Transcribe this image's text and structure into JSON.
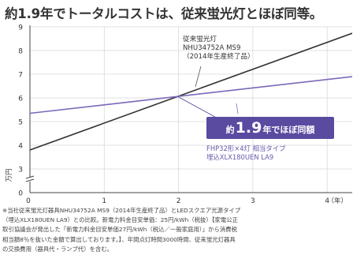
{
  "headline": "約1.9年でトータルコストは、従来蛍光灯とほぼ同等。",
  "chart_data": {
    "type": "line",
    "x_ticks": [
      0,
      1,
      2,
      3,
      4
    ],
    "y_ticks": [
      0,
      3,
      4,
      5,
      6,
      7,
      8,
      9
    ],
    "xlim": [
      0,
      4.4
    ],
    "y_axis_break": true,
    "ylim": [
      0,
      9
    ],
    "xlabel": "（年）",
    "ylabel": "万円",
    "grid": true,
    "series": [
      {
        "name_lines": [
          "従来蛍光灯",
          "NHU34752A MS9",
          "（2014年生産終了品）"
        ],
        "x": [
          0,
          4.4
        ],
        "y": [
          3.8,
          8.8
        ],
        "color": "#333333"
      },
      {
        "name_lines": [
          "FHP32形×4灯 相当タイプ",
          "埋込XLX180UEN LA9"
        ],
        "x": [
          0,
          4.4
        ],
        "y": [
          5.35,
          6.92
        ],
        "color": "#7b68b8"
      }
    ],
    "callout": {
      "prefix": "約",
      "value": "1.9",
      "suffix": "年でほぼ同額",
      "color": "#5a4aa0"
    }
  },
  "footnote": "※当社従来蛍光灯器具NHU34752A MS9（2014年生産終了品）とLEDスクエア光源タイプ\n（埋込XLX180UEN LA9）との比較。新電力料金目安単価：25円/kWh（税抜）【家電公正\n取引協議会が発出した「新電力料金目安単価27円/kWh（税込／一般家庭用）」から消費税\n相当額8％を抜いた金額で算出しております。】、年間点灯時間3000時間、従来蛍光灯器具\nの交換費用（器具代・ランプ代）を含む。"
}
